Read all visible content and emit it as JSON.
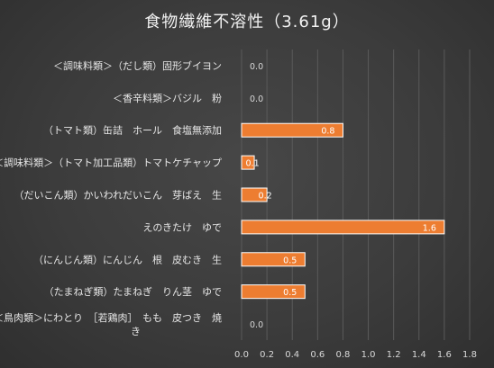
{
  "chart_data": {
    "type": "bar",
    "orientation": "horizontal",
    "title": "食物繊維不溶性（3.61g）",
    "categories": [
      "＜調味料類＞（だし類）固形ブイヨン",
      "＜香辛料類＞バジル　粉",
      "（トマト類）缶詰　ホール　食塩無添加",
      "＜調味料類＞（トマト加工品類）トマトケチャップ",
      "（だいこん類）かいわれだいこん　芽ばえ　生",
      "えのきたけ　ゆで",
      "（にんじん類）にんじん　根　皮むき　生",
      "（たまねぎ類）たまねぎ　りん茎　ゆで",
      "＜鳥肉類＞にわとり　［若鶏肉］　もも　皮つき　焼き"
    ],
    "values": [
      0.0,
      0.0,
      0.8,
      0.1,
      0.2,
      1.6,
      0.5,
      0.5,
      0.0
    ],
    "value_labels": [
      "0.0",
      "0.0",
      "0.8",
      "0.1",
      "0.2",
      "1.6",
      "0.5",
      "0.5",
      "0.0"
    ],
    "xlim": [
      0,
      1.8
    ],
    "xticks": [
      "0.0",
      "0.2",
      "0.4",
      "0.6",
      "0.8",
      "1.0",
      "1.2",
      "1.4",
      "1.6",
      "1.8"
    ],
    "grid": true,
    "legend": "none",
    "colors": {
      "bar": "#ed7d31",
      "bar_border": "#ffffff",
      "background": "#3a3a3a",
      "grid": "#5a5a5a",
      "text": "#e6e6e6"
    }
  }
}
